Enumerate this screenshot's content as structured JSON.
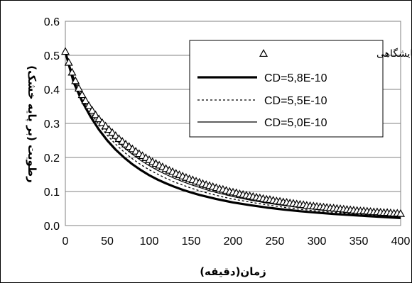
{
  "chart_data": {
    "type": "line",
    "xlabel": "زمان(دقیقه)",
    "ylabel": "رطوبت (بر پایه خشک)",
    "xlim": [
      0,
      400
    ],
    "ylim": [
      0,
      0.6
    ],
    "x_ticks": [
      "0",
      "50",
      "100",
      "150",
      "200",
      "250",
      "300",
      "350",
      "400"
    ],
    "y_ticks": [
      "0.0",
      "0.1",
      "0.2",
      "0.3",
      "0.4",
      "0.5",
      "0.6"
    ],
    "grid": "horizontal",
    "legend_position": "top-right",
    "series": [
      {
        "name": "داده‌های آزمایشگاهی",
        "style": "triangle-markers",
        "color": "#000000",
        "x": [
          0,
          4,
          8,
          12,
          16,
          20,
          24,
          28,
          32,
          36,
          40,
          44,
          48,
          52,
          56,
          60,
          64,
          68,
          72,
          76,
          80,
          84,
          88,
          92,
          96,
          100,
          104,
          108,
          112,
          116,
          120,
          124,
          128,
          132,
          136,
          140,
          144,
          148,
          152,
          156,
          160,
          164,
          168,
          172,
          176,
          180,
          184,
          188,
          192,
          196,
          200,
          204,
          208,
          212,
          216,
          220,
          224,
          228,
          232,
          236,
          240,
          244,
          248,
          252,
          256,
          260,
          264,
          268,
          272,
          276,
          280,
          284,
          288,
          292,
          296,
          300,
          304,
          308,
          312,
          316,
          320,
          324,
          328,
          332,
          336,
          340,
          344,
          348,
          352,
          356,
          360,
          364,
          368,
          372,
          376,
          380,
          384,
          388,
          392,
          396,
          400
        ],
        "values": [
          0.51,
          0.478,
          0.449,
          0.424,
          0.402,
          0.383,
          0.366,
          0.351,
          0.337,
          0.324,
          0.312,
          0.301,
          0.291,
          0.281,
          0.272,
          0.263,
          0.254,
          0.246,
          0.238,
          0.231,
          0.224,
          0.217,
          0.21,
          0.204,
          0.198,
          0.192,
          0.186,
          0.181,
          0.176,
          0.171,
          0.166,
          0.161,
          0.157,
          0.152,
          0.148,
          0.144,
          0.14,
          0.136,
          0.133,
          0.129,
          0.126,
          0.122,
          0.119,
          0.116,
          0.113,
          0.11,
          0.107,
          0.105,
          0.102,
          0.099,
          0.097,
          0.095,
          0.092,
          0.09,
          0.088,
          0.086,
          0.084,
          0.082,
          0.08,
          0.078,
          0.076,
          0.075,
          0.073,
          0.071,
          0.07,
          0.068,
          0.067,
          0.065,
          0.064,
          0.062,
          0.061,
          0.06,
          0.058,
          0.057,
          0.056,
          0.055,
          0.054,
          0.053,
          0.052,
          0.051,
          0.05,
          0.049,
          0.048,
          0.047,
          0.046,
          0.045,
          0.044,
          0.043,
          0.042,
          0.042,
          0.041,
          0.04,
          0.039,
          0.039,
          0.038,
          0.037,
          0.037,
          0.036,
          0.035,
          0.035,
          0.034
        ]
      },
      {
        "name": "CD=5,8E-10",
        "style": "thick-solid",
        "color": "#000000",
        "x": [
          0,
          10,
          20,
          30,
          40,
          50,
          60,
          70,
          80,
          90,
          100,
          110,
          120,
          130,
          140,
          150,
          160,
          170,
          180,
          190,
          200,
          220,
          240,
          260,
          280,
          300,
          320,
          340,
          360,
          380,
          400
        ],
        "values": [
          0.51,
          0.42,
          0.365,
          0.32,
          0.282,
          0.25,
          0.223,
          0.2,
          0.18,
          0.163,
          0.148,
          0.135,
          0.124,
          0.114,
          0.105,
          0.097,
          0.09,
          0.084,
          0.078,
          0.073,
          0.068,
          0.06,
          0.053,
          0.047,
          0.042,
          0.038,
          0.034,
          0.031,
          0.028,
          0.025,
          0.022
        ]
      },
      {
        "name": "CD=5,5E-10",
        "style": "dotted",
        "color": "#000000",
        "x": [
          0,
          10,
          20,
          30,
          40,
          50,
          60,
          70,
          80,
          90,
          100,
          110,
          120,
          130,
          140,
          150,
          160,
          170,
          180,
          190,
          200,
          220,
          240,
          260,
          280,
          300,
          320,
          340,
          360,
          380,
          400
        ],
        "values": [
          0.51,
          0.428,
          0.375,
          0.332,
          0.296,
          0.265,
          0.239,
          0.216,
          0.196,
          0.179,
          0.164,
          0.151,
          0.139,
          0.128,
          0.119,
          0.11,
          0.102,
          0.095,
          0.089,
          0.083,
          0.078,
          0.069,
          0.061,
          0.054,
          0.048,
          0.043,
          0.039,
          0.035,
          0.032,
          0.029,
          0.026
        ]
      },
      {
        "name": "CD=5,0E-10",
        "style": "thin-solid",
        "color": "#000000",
        "x": [
          0,
          10,
          20,
          30,
          40,
          50,
          60,
          70,
          80,
          90,
          100,
          110,
          120,
          130,
          140,
          150,
          160,
          170,
          180,
          190,
          200,
          220,
          240,
          260,
          280,
          300,
          320,
          340,
          360,
          380,
          400
        ],
        "values": [
          0.51,
          0.435,
          0.385,
          0.343,
          0.308,
          0.278,
          0.252,
          0.229,
          0.209,
          0.191,
          0.176,
          0.162,
          0.15,
          0.139,
          0.129,
          0.12,
          0.112,
          0.104,
          0.097,
          0.091,
          0.085,
          0.075,
          0.066,
          0.059,
          0.053,
          0.047,
          0.042,
          0.038,
          0.034,
          0.031,
          0.028
        ]
      }
    ]
  }
}
